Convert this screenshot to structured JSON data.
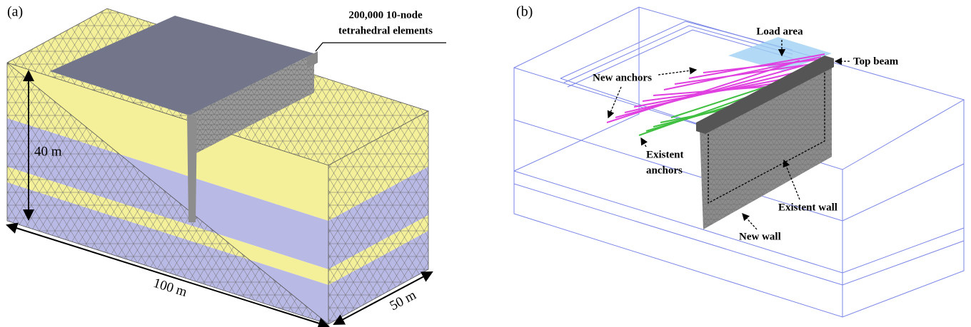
{
  "panel_a": {
    "label": "(a)",
    "callout_line1": "200,000 10-node",
    "callout_line2": "tetrahedral elements",
    "height_label": "40 m",
    "length_label": "100 m",
    "width_label": "50 m"
  },
  "panel_b": {
    "label": "(b)",
    "load_area": "Load area",
    "top_beam": "Top beam",
    "new_anchors": "New anchors",
    "existent_anchors_line1": "Existent",
    "existent_anchors_line2": "anchors",
    "existent_wall": "Existent wall",
    "new_wall": "New wall"
  }
}
